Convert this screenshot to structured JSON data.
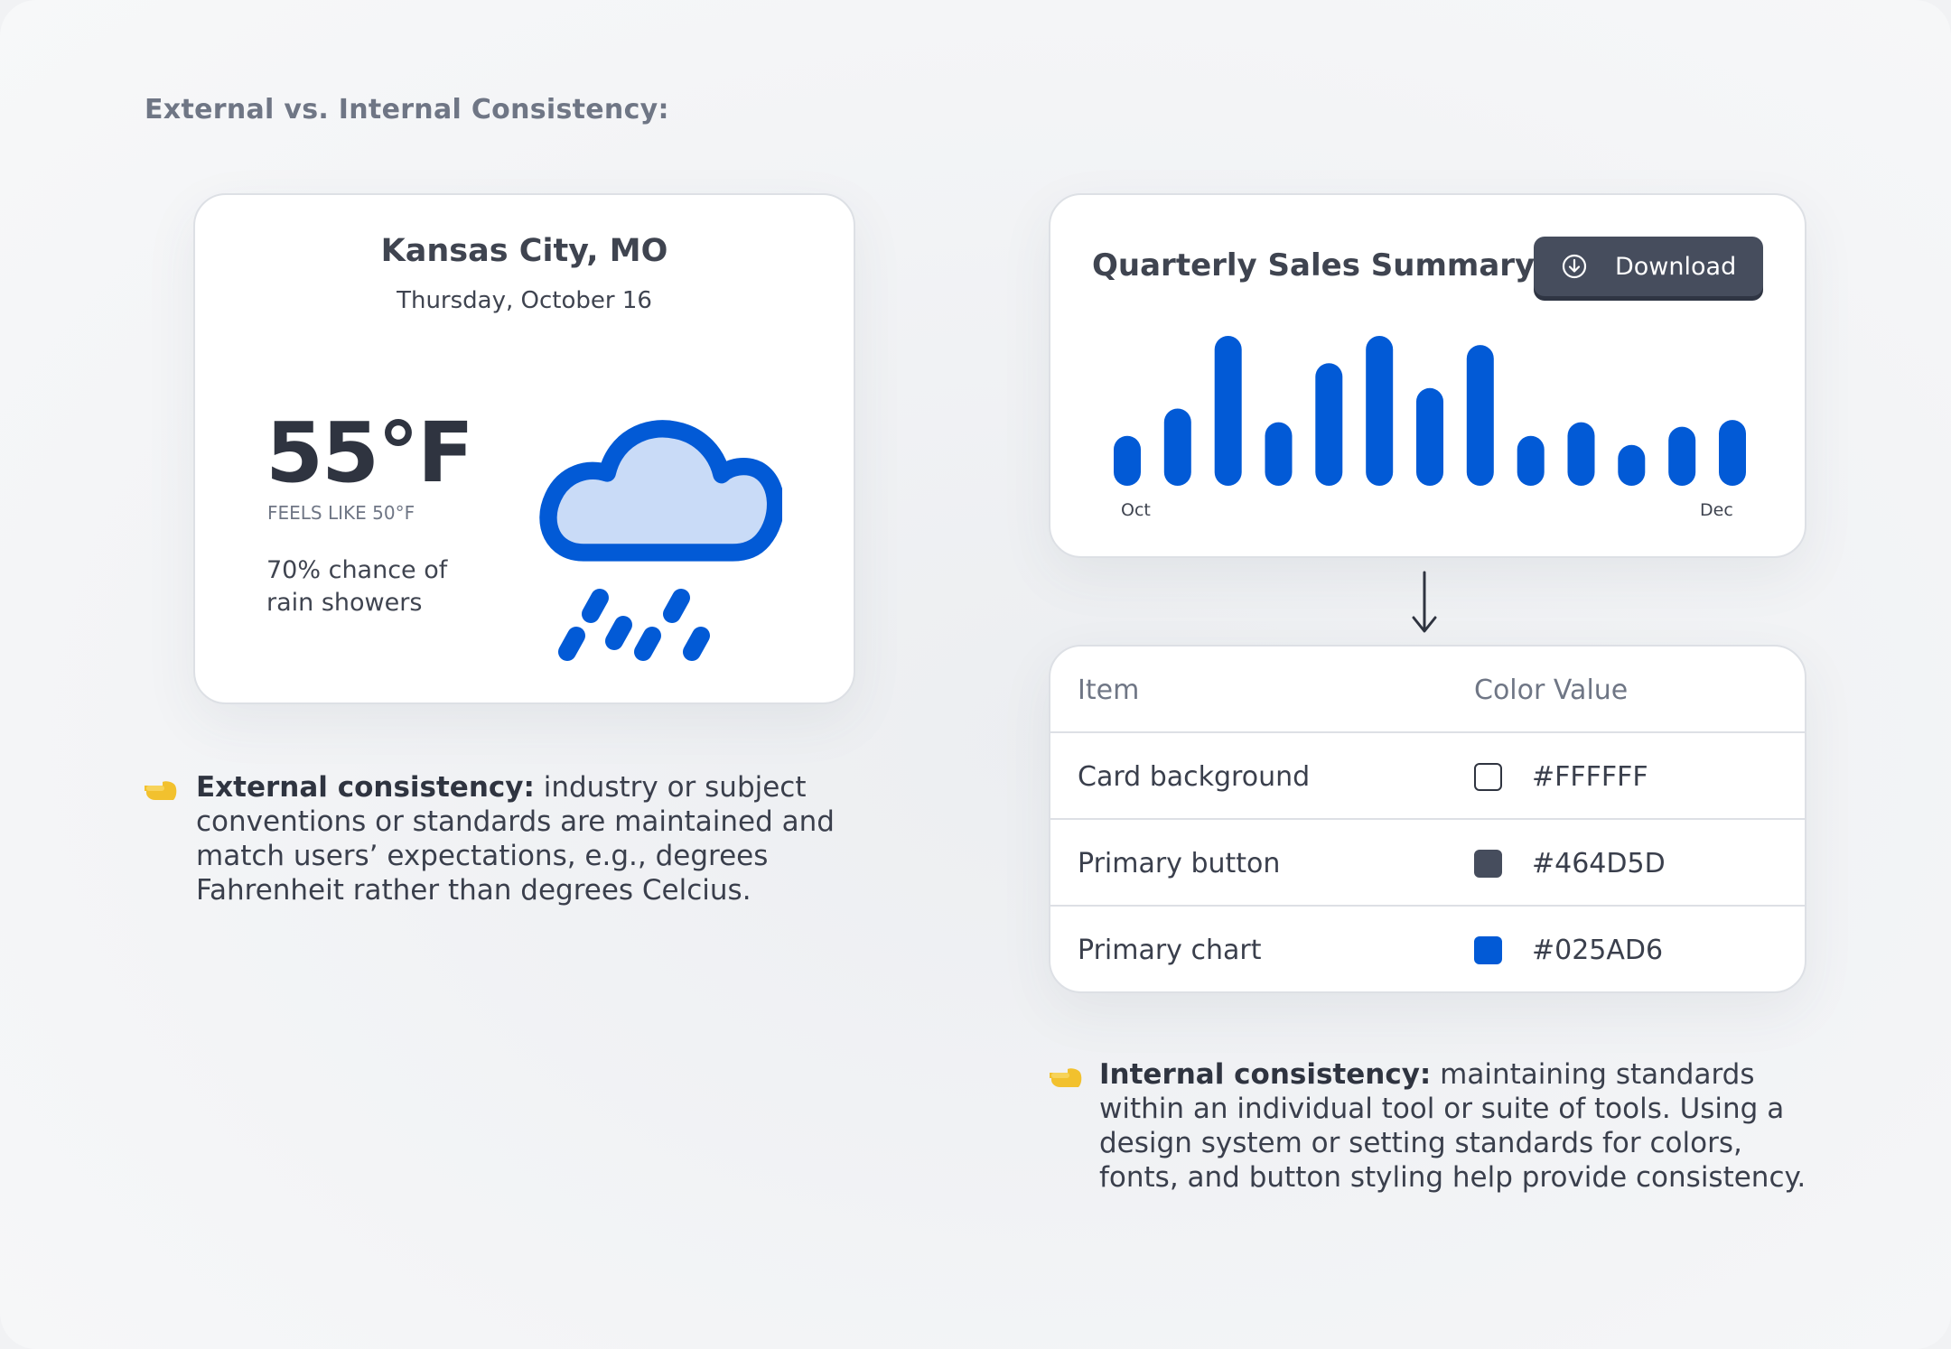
{
  "heading": "External vs. Internal Consistency:",
  "weather": {
    "city": "Kansas City, MO",
    "date": "Thursday, October 16",
    "temperature": "55°F",
    "feels_like": "FEELS LIKE 50°F",
    "rain_line1": "70% chance of",
    "rain_line2": "rain showers",
    "icon": "rain-cloud-icon"
  },
  "sales": {
    "title": "Quarterly Sales Summary",
    "download_label": "Download",
    "download_icon": "download-circle-icon"
  },
  "chart_data": {
    "type": "bar",
    "title": "Quarterly Sales Summary",
    "start_tick": "Oct",
    "end_tick": "Dec",
    "values": [
      22,
      34,
      66,
      28,
      54,
      66,
      43,
      62,
      22,
      28,
      18,
      26,
      29
    ],
    "color": "#025AD6",
    "axis_visible": false,
    "grid": false
  },
  "table": {
    "headers": [
      "Item",
      "Color Value"
    ],
    "rows": [
      {
        "item": "Card background",
        "value": "#FFFFFF",
        "swatch": "#FFFFFF"
      },
      {
        "item": "Primary button",
        "value": "#464D5D",
        "swatch": "#464D5D"
      },
      {
        "item": "Primary chart",
        "value": "#025AD6",
        "swatch": "#025AD6"
      }
    ]
  },
  "notes": {
    "external_title": "External consistency:",
    "external_body": " industry or subject conventions or standards are maintained and match users’ expectations, e.g., degrees Fahrenheit rather than degrees Celcius.",
    "internal_title": "Internal consistency:",
    "internal_body": " maintaining standards within an individual tool or suite of tools. Using a design system or setting standards for colors, fonts, and button styling help provide consistency.",
    "pointer_icon": "pointing-hand-icon"
  },
  "colors": {
    "primary_chart": "#025AD6",
    "primary_button": "#464D5D",
    "card_background": "#FFFFFF",
    "cloud_fill": "#C9DBF7",
    "pointer": "#F2C12E"
  }
}
